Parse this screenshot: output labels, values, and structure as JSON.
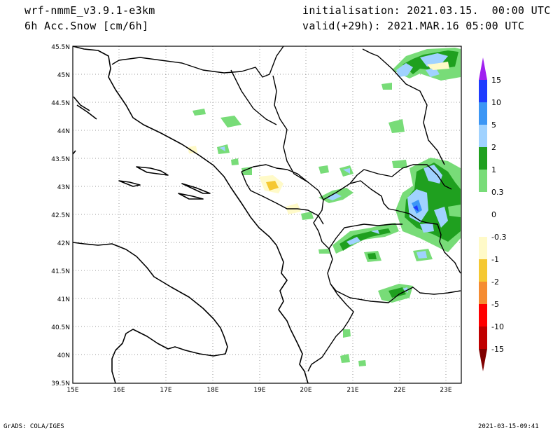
{
  "header": {
    "model": "wrf-nmmE_v3.9.1-e3km",
    "field": "6h Acc.Snow [cm/6h]",
    "init": "initialisation: 2021.03.15.  00:00 UTC",
    "valid": "valid(+29h): 2021.MAR.16 05:00 UTC"
  },
  "map": {
    "lat_ticks": [
      "45.5N",
      "45N",
      "44.5N",
      "44N",
      "43.5N",
      "43N",
      "42.5N",
      "42N",
      "41.5N",
      "41N",
      "40.5N",
      "40N",
      "39.5N"
    ],
    "lon_ticks": [
      "15E",
      "16E",
      "17E",
      "18E",
      "19E",
      "20E",
      "21E",
      "22E",
      "23E"
    ],
    "lat_range": [
      39.5,
      45.5
    ],
    "lon_range": [
      15,
      23.3
    ],
    "grid": true
  },
  "legend": {
    "labels": [
      "15",
      "10",
      "5",
      "2",
      "1",
      "0.3",
      "0",
      "-0.3",
      "-1",
      "-2",
      "-5",
      "-10",
      "-15"
    ],
    "colors": [
      "#a020f0",
      "#1e3cff",
      "#3c96f5",
      "#a0d2ff",
      "#1fa01f",
      "#78dc78",
      "#ffffff",
      "#ffffff",
      "#fffac8",
      "#f5c832",
      "#f58c32",
      "#ff0000",
      "#c00000",
      "#800000"
    ]
  },
  "footer": {
    "credit": "GrADS: COLA/IGES",
    "timestamp": "2021-03-15-09:41"
  }
}
